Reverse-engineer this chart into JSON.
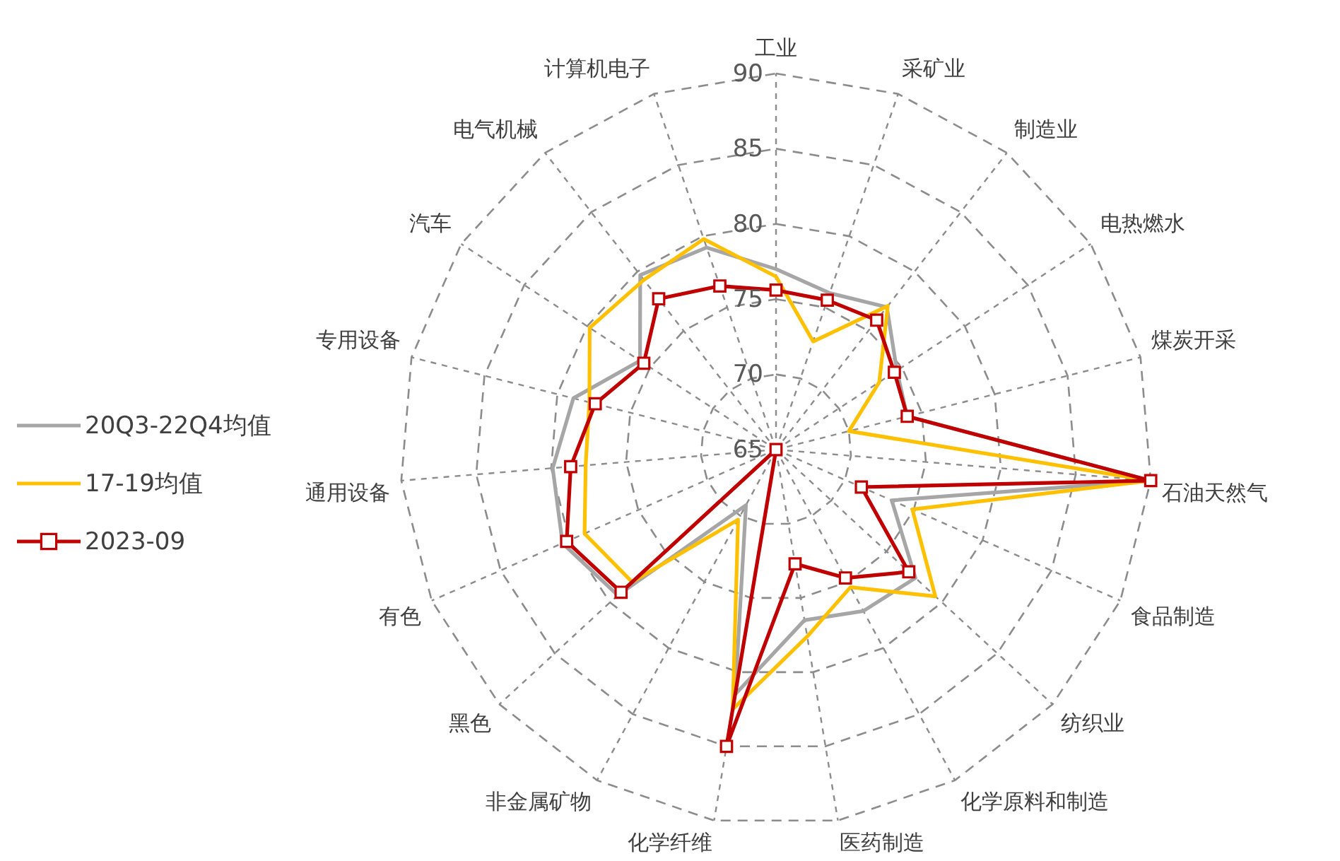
{
  "chart_data": {
    "type": "radar",
    "categories": [
      "工业",
      "采矿业",
      "制造业",
      "电热燃水",
      "煤炭开采",
      "石油天然气",
      "食品制造",
      "纺织业",
      "化学原料和制造",
      "医药制造",
      "化学纤维",
      "非金属矿物",
      "黑色",
      "有色",
      "通用设备",
      "专用设备",
      "汽车",
      "电气机械",
      "计算机电子"
    ],
    "series": [
      {
        "name": "20Q3-22Q4均值",
        "color": "#a6a6a6",
        "values": [
          77,
          76,
          77,
          74.6,
          74,
          90,
          73.4,
          77.6,
          77.2,
          76.5,
          81.5,
          69.2,
          79.3,
          80.5,
          79.9,
          78.9,
          75.8,
          79.7,
          79.2
        ]
      },
      {
        "name": "17-19均值",
        "color": "#ffc000",
        "values": [
          76.5,
          72.6,
          77.1,
          73.2,
          70,
          90,
          74.9,
          79.4,
          75.4,
          77.6,
          82.5,
          70.3,
          78,
          78.9,
          77.7,
          77.8,
          79.8,
          79.3,
          79.8
        ]
      },
      {
        "name": "2023-09",
        "color": "#c00000",
        "marker": "square",
        "values": [
          75.6,
          75.5,
          75.9,
          74.4,
          74,
          90,
          71.2,
          77,
          74.7,
          72.7,
          85,
          65,
          79,
          80.2,
          78.7,
          77.4,
          75.5,
          77.7,
          76.5
        ]
      }
    ],
    "ylim": [
      65,
      90
    ],
    "yticks": [
      65,
      70,
      75,
      80,
      85,
      90
    ],
    "grid": true,
    "legend": "left"
  }
}
